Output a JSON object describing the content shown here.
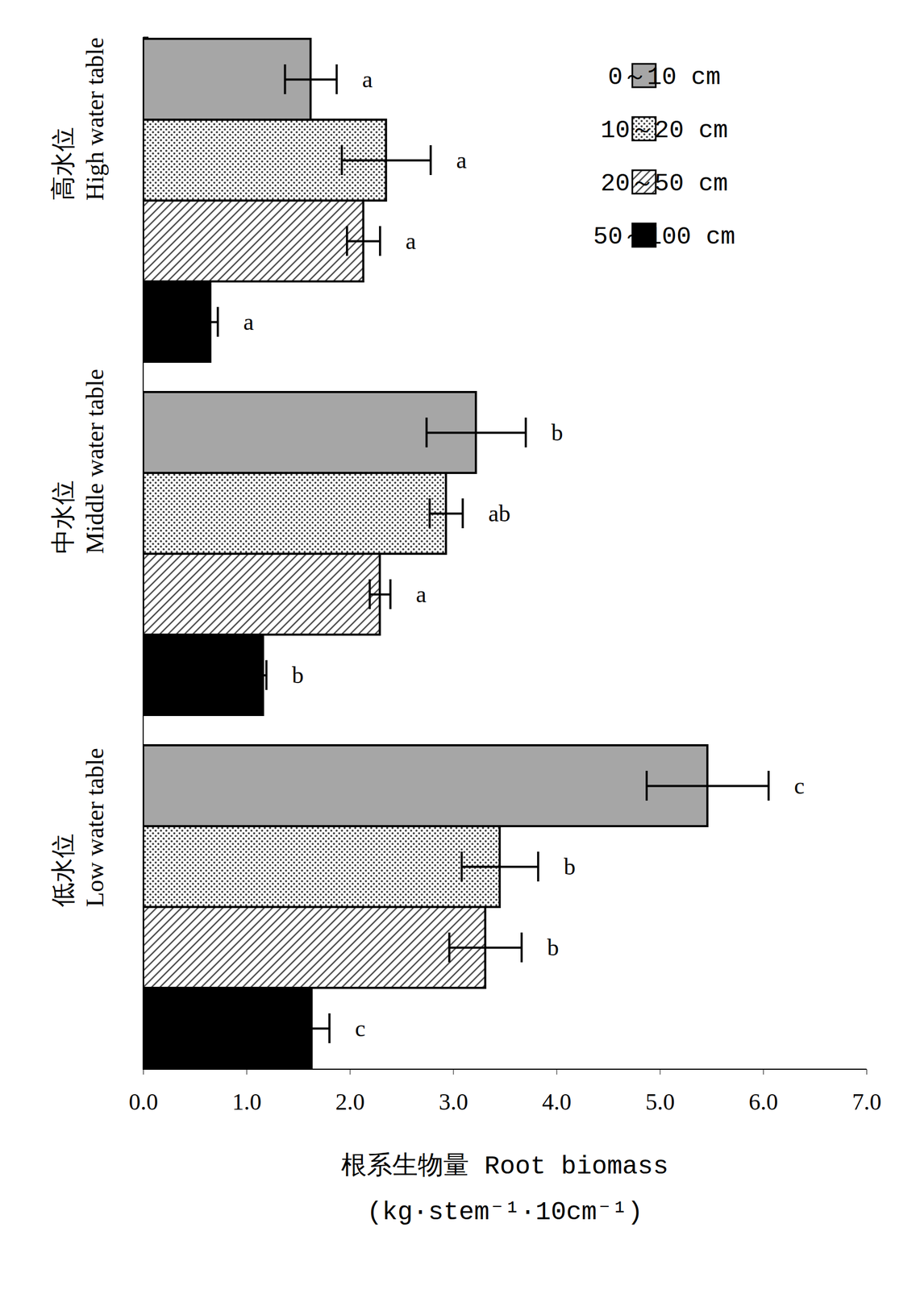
{
  "chart_data": {
    "type": "bar",
    "orientation": "horizontal",
    "categories": [
      "高水位\nHigh water table",
      "中水位\nMiddle water table",
      "低水位\nLow water table"
    ],
    "x_label": "根系生物量 Root biomass\n(kg·stem⁻¹·10cm⁻¹)",
    "xlim": [
      0,
      7
    ],
    "xticks": [
      0,
      1,
      2,
      3,
      4,
      5,
      6,
      7
    ],
    "grid": false,
    "legend": "upper right",
    "series": [
      {
        "name": "0～10 cm",
        "color": "#a6a6a6",
        "values": [
          1.62,
          3.22,
          5.46
        ],
        "errors": [
          0.25,
          0.48,
          0.59
        ],
        "letters": [
          "a",
          "b",
          "c"
        ]
      },
      {
        "name": "10～20 cm",
        "color": "#404040",
        "values": [
          2.35,
          2.93,
          3.45
        ],
        "errors": [
          0.43,
          0.16,
          0.37
        ],
        "letters": [
          "a",
          "ab",
          "b"
        ]
      },
      {
        "name": "20～50 cm",
        "color": "#404040",
        "values": [
          2.13,
          2.29,
          3.31
        ],
        "errors": [
          0.16,
          0.1,
          0.35
        ],
        "letters": [
          "a",
          "a",
          "b"
        ]
      },
      {
        "name": "50～100 cm",
        "color": "#000000",
        "values": [
          0.65,
          1.16,
          1.63
        ],
        "errors": [
          0.07,
          0.03,
          0.17
        ],
        "letters": [
          "a",
          "b",
          "c"
        ]
      }
    ]
  }
}
